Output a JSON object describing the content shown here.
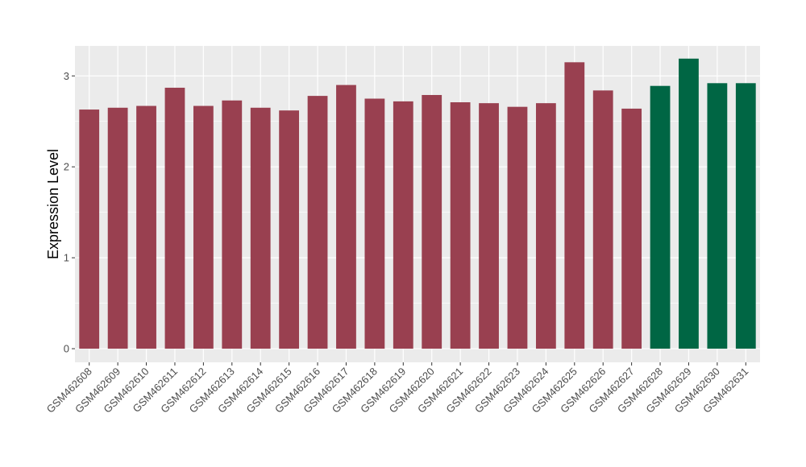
{
  "chart_data": {
    "type": "bar",
    "title": "",
    "xlabel": "",
    "ylabel": "Expression Level",
    "ylim": [
      -0.15,
      3.33
    ],
    "yticks": [
      0,
      1,
      2,
      3
    ],
    "grid": true,
    "legend": "none",
    "panel_color": "#ebebeb",
    "grid_color": "#ffffff",
    "categories": [
      "GSM462608",
      "GSM462609",
      "GSM462610",
      "GSM462611",
      "GSM462612",
      "GSM462613",
      "GSM462614",
      "GSM462615",
      "GSM462616",
      "GSM462617",
      "GSM462618",
      "GSM462619",
      "GSM462620",
      "GSM462621",
      "GSM462622",
      "GSM462623",
      "GSM462624",
      "GSM462625",
      "GSM462626",
      "GSM462627",
      "GSM462628",
      "GSM462629",
      "GSM462630",
      "GSM462631"
    ],
    "values": [
      2.63,
      2.65,
      2.67,
      2.87,
      2.67,
      2.73,
      2.65,
      2.62,
      2.78,
      2.9,
      2.75,
      2.72,
      2.79,
      2.71,
      2.7,
      2.66,
      2.7,
      3.15,
      2.84,
      2.64,
      2.89,
      3.19,
      2.92,
      2.92
    ],
    "colors": [
      "#994050",
      "#994050",
      "#994050",
      "#994050",
      "#994050",
      "#994050",
      "#994050",
      "#994050",
      "#994050",
      "#994050",
      "#994050",
      "#994050",
      "#994050",
      "#994050",
      "#994050",
      "#994050",
      "#994050",
      "#994050",
      "#994050",
      "#994050",
      "#006644",
      "#006644",
      "#006644",
      "#006644"
    ]
  }
}
